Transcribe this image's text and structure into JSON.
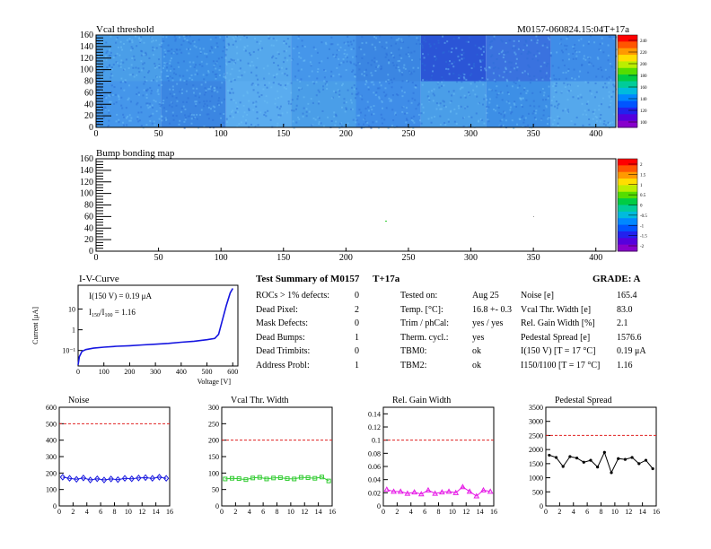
{
  "vcal_map": {
    "title": "Vcal threshold",
    "module_label": "M0157-060824.15:04T+17a",
    "y_ticks": [
      "160",
      "140",
      "120",
      "100",
      "80",
      "60",
      "40",
      "20",
      "0"
    ],
    "x_ticks": [
      "0",
      "50",
      "100",
      "150",
      "200",
      "250",
      "300",
      "350",
      "400"
    ],
    "scale_ticks": [
      "240",
      "220",
      "200",
      "180",
      "160",
      "140",
      "120",
      "100"
    ],
    "xlim": [
      0,
      416
    ],
    "ylim": [
      0,
      160
    ]
  },
  "bump_map": {
    "title": "Bump bonding map",
    "y_ticks": [
      "160",
      "140",
      "120",
      "100",
      "80",
      "60",
      "40",
      "20",
      "0"
    ],
    "x_ticks": [
      "0",
      "50",
      "100",
      "150",
      "200",
      "250",
      "300",
      "350",
      "400"
    ],
    "scale_ticks": [
      "2",
      "1.5",
      "1",
      "0.5",
      "0",
      "-0.5",
      "-1",
      "-1.5",
      "-2"
    ],
    "xlim": [
      0,
      416
    ],
    "ylim": [
      0,
      160
    ]
  },
  "iv_curve": {
    "title": "I-V-Curve",
    "ylabel": "Current [μA]",
    "xlabel": "Voltage [V]",
    "annot1": "I(150 V) = 0.19 μA",
    "annot2_main": "I",
    "annot2_sub1": "150",
    "annot2_mid": "/I",
    "annot2_sub2": "100",
    "annot2_val": " = 1.16",
    "x_ticks": [
      "0",
      "100",
      "200",
      "300",
      "400",
      "500",
      "600"
    ],
    "y_ticks": [
      "10",
      "1",
      "10⁻¹"
    ],
    "color": "#1515e0"
  },
  "summary": {
    "title": "Test Summary of M0157",
    "tag": "T+17a",
    "grade": "GRADE:  A",
    "left": [
      {
        "label": "ROCs > 1% defects:",
        "value": "0"
      },
      {
        "label": "Dead Pixel:",
        "value": "2"
      },
      {
        "label": "Mask Defects:",
        "value": "0"
      },
      {
        "label": "Dead Bumps:",
        "value": "1"
      },
      {
        "label": "Dead Trimbits:",
        "value": "0"
      },
      {
        "label": "Address Probl:",
        "value": "1"
      }
    ],
    "mid": [
      {
        "label": "Tested on:",
        "value": "Aug 25"
      },
      {
        "label": "Temp. [°C]:",
        "value": "16.8 +- 0.3"
      },
      {
        "label": "Trim / phCal:",
        "value": "yes / yes"
      },
      {
        "label": "Therm. cycl.:",
        "value": "yes"
      },
      {
        "label": "TBM0:",
        "value": "ok"
      },
      {
        "label": "TBM2:",
        "value": "ok"
      }
    ],
    "right": [
      {
        "label": "Noise [e]",
        "value": "165.4"
      },
      {
        "label": "Vcal Thr. Width [e]",
        "value": "83.0"
      },
      {
        "label": "Rel. Gain Width [%]",
        "value": "2.1"
      },
      {
        "label": "Pedestal Spread [e]",
        "value": "1576.6"
      },
      {
        "label": "I(150 V) [T = 17 °C]",
        "value": "0.19 μA"
      },
      {
        "label": "I150/I100   [T = 17 °C]",
        "value": "1.16"
      }
    ]
  },
  "chart_data": [
    {
      "type": "line",
      "title": "Noise",
      "x": [
        0,
        1,
        2,
        3,
        4,
        5,
        6,
        7,
        8,
        9,
        10,
        11,
        12,
        13,
        14,
        15
      ],
      "values": [
        175,
        168,
        162,
        170,
        158,
        165,
        158,
        164,
        160,
        168,
        165,
        170,
        172,
        168,
        175,
        168
      ],
      "threshold": 500,
      "ylim": [
        0,
        600
      ],
      "xlim": [
        0,
        16
      ],
      "y_ticks": [
        0,
        100,
        200,
        300,
        400,
        500,
        600
      ],
      "x_ticks": [
        0,
        2,
        4,
        6,
        8,
        10,
        12,
        14,
        16
      ],
      "color": "#1a1adf",
      "marker": "diamond"
    },
    {
      "type": "line",
      "title": "Vcal Thr. Width",
      "x": [
        0,
        1,
        2,
        3,
        4,
        5,
        6,
        7,
        8,
        9,
        10,
        11,
        12,
        13,
        14,
        15
      ],
      "values": [
        82,
        84,
        83,
        80,
        85,
        87,
        82,
        85,
        86,
        83,
        82,
        87,
        86,
        84,
        88,
        76
      ],
      "threshold": 200,
      "ylim": [
        0,
        300
      ],
      "xlim": [
        0,
        16
      ],
      "y_ticks": [
        0,
        50,
        100,
        150,
        200,
        250,
        300
      ],
      "x_ticks": [
        0,
        2,
        4,
        6,
        8,
        10,
        12,
        14,
        16
      ],
      "color": "#33cc33",
      "marker": "square"
    },
    {
      "type": "line",
      "title": "Rel. Gain Width",
      "x": [
        0,
        1,
        2,
        3,
        4,
        5,
        6,
        7,
        8,
        9,
        10,
        11,
        12,
        13,
        14,
        15
      ],
      "values": [
        0.025,
        0.022,
        0.022,
        0.019,
        0.021,
        0.018,
        0.024,
        0.019,
        0.021,
        0.022,
        0.02,
        0.029,
        0.022,
        0.015,
        0.024,
        0.022
      ],
      "threshold": 0.1,
      "ylim": [
        0,
        0.15
      ],
      "xlim": [
        0,
        16
      ],
      "y_ticks": [
        0,
        0.02,
        0.04,
        0.06,
        0.08,
        0.1,
        0.12,
        0.14
      ],
      "x_ticks": [
        0,
        2,
        4,
        6,
        8,
        10,
        12,
        14,
        16
      ],
      "color": "#e619e6",
      "marker": "triangle"
    },
    {
      "type": "line",
      "title": "Pedestal Spread",
      "x": [
        0,
        1,
        2,
        3,
        4,
        5,
        6,
        7,
        8,
        9,
        10,
        11,
        12,
        13,
        14,
        15
      ],
      "values": [
        1800,
        1720,
        1400,
        1750,
        1700,
        1550,
        1620,
        1380,
        1900,
        1180,
        1680,
        1650,
        1720,
        1500,
        1620,
        1320
      ],
      "threshold": 2500,
      "ylim": [
        0,
        3500
      ],
      "xlim": [
        0,
        16
      ],
      "y_ticks": [
        0,
        500,
        1000,
        1500,
        2000,
        2500,
        3000,
        3500
      ],
      "x_ticks": [
        0,
        2,
        4,
        6,
        8,
        10,
        12,
        14,
        16
      ],
      "color": "#000000",
      "marker": "dot"
    }
  ]
}
